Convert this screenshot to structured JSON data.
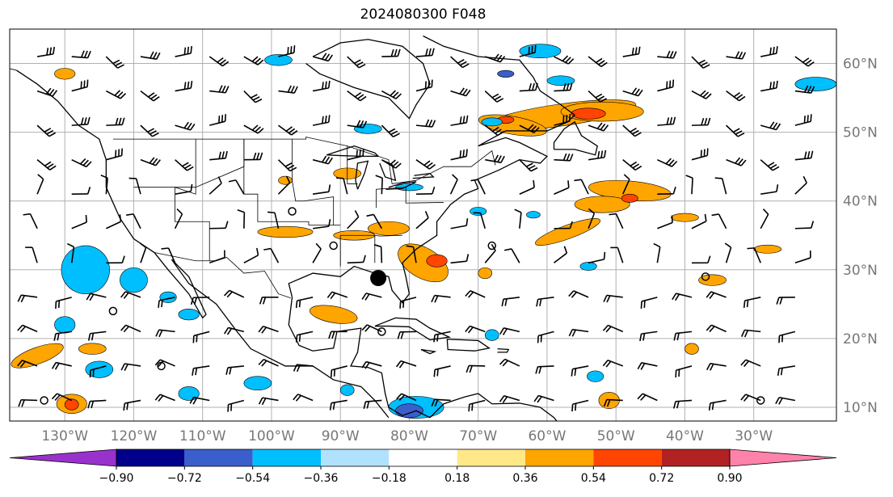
{
  "title": "2024080300 F048",
  "map": {
    "projection": "lat-lon",
    "lon_range": [
      -138,
      -18
    ],
    "lat_range": [
      8,
      65
    ],
    "lon_ticks": [
      {
        "value": -130,
        "label": "130°W"
      },
      {
        "value": -120,
        "label": "120°W"
      },
      {
        "value": -110,
        "label": "110°W"
      },
      {
        "value": -100,
        "label": "100°W"
      },
      {
        "value": -90,
        "label": "90°W"
      },
      {
        "value": -80,
        "label": "80°W"
      },
      {
        "value": -70,
        "label": "70°W"
      },
      {
        "value": -60,
        "label": "60°W"
      },
      {
        "value": -50,
        "label": "50°W"
      },
      {
        "value": -40,
        "label": "40°W"
      },
      {
        "value": -30,
        "label": "30°W"
      }
    ],
    "lat_ticks": [
      {
        "value": 60,
        "label": "60°N"
      },
      {
        "value": 50,
        "label": "50°N"
      },
      {
        "value": 40,
        "label": "40°N"
      },
      {
        "value": 30,
        "label": "30°N"
      },
      {
        "value": 20,
        "label": "20°N"
      },
      {
        "value": 10,
        "label": "10°N"
      }
    ],
    "gridlines": true,
    "marker": {
      "lon": -84.5,
      "lat": 28.8,
      "symbol": "filled-circle"
    },
    "wind_barbs": true,
    "colors": {
      "positive": "#ffa500",
      "positive_strong": "#ff4500",
      "negative": "#00bfff",
      "negative_strong": "#3a5fcd",
      "coast": "#000000",
      "grid": "#b0b0b0"
    }
  },
  "colorbar": {
    "colors": [
      "#9932cc",
      "#00008b",
      "#3a5fcd",
      "#00bfff",
      "#b0e2ff",
      "#ffffff",
      "#ffe888",
      "#ffa500",
      "#ff4500",
      "#b22222",
      "#ff82ab"
    ],
    "ticks": [
      "−0.90",
      "−0.72",
      "−0.54",
      "−0.36",
      "−0.18",
      "0.18",
      "0.36",
      "0.54",
      "0.72",
      "0.90"
    ],
    "extend": "both"
  }
}
